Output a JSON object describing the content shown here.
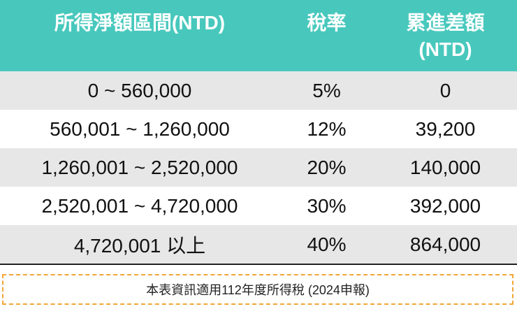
{
  "table": {
    "header": [
      "所得淨額區間(NTD)",
      "稅率",
      [
        "累進差額",
        "(NTD)"
      ]
    ],
    "rows": [
      [
        "0 ~ 560,000",
        "5%",
        "0"
      ],
      [
        "560,001 ~ 1,260,000",
        "12%",
        "39,200"
      ],
      [
        "1,260,001 ~ 2,520,000",
        "20%",
        "140,000"
      ],
      [
        "2,520,001 ~ 4,720,000",
        "30%",
        "392,000"
      ],
      [
        "4,720,001 以上",
        "40%",
        "864,000"
      ]
    ]
  },
  "note": "本表資訊適用112年度所得稅 (2024申報)"
}
